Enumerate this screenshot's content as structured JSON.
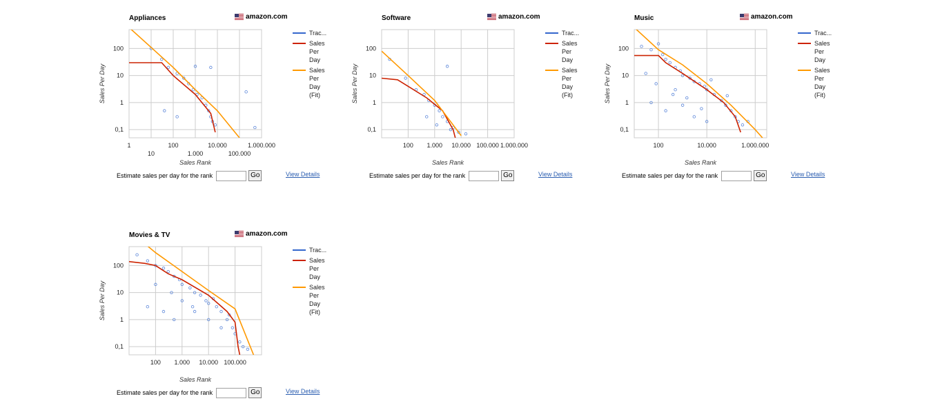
{
  "colors": {
    "tracked": "#3366cc",
    "per_day": "#cc2200",
    "fit": "#ff9900",
    "dots": "#5b86d9",
    "grid": "#cccccc"
  },
  "legend": [
    "Trac...",
    "Sales|Per|Day",
    "Sales|Per|Day|(Fit)"
  ],
  "estimate_label": "Estimate sales per day for the rank",
  "go_label": "Go",
  "view_details_label": "View Details",
  "store_label": "amazon.com",
  "store_icon": "us-flag-icon",
  "panels": [
    {
      "title": "Appliances"
    },
    {
      "title": "Software"
    },
    {
      "title": "Music"
    },
    {
      "title": "Movies & TV"
    }
  ],
  "chart_data": [
    {
      "type": "scatter",
      "title": "Appliances",
      "xlabel": "Sales Rank",
      "ylabel": "Sales Per Day",
      "x_scale": "log",
      "y_scale": "log",
      "xlim": [
        1,
        1000000
      ],
      "ylim": [
        0.05,
        500
      ],
      "x_ticks": [
        1,
        10,
        100,
        1000,
        10000,
        100000,
        1000000
      ],
      "x_tick_labels": [
        "1",
        "10",
        "100",
        "1.000",
        "10.000",
        "100.000",
        "1.000.000"
      ],
      "y_ticks": [
        0.1,
        1,
        10,
        100
      ],
      "y_tick_labels": [
        "0,1",
        "1",
        "10",
        "100"
      ],
      "grid": true,
      "legend_position": "right",
      "series": [
        {
          "name": "Trac...",
          "points": [
            [
              10,
              100
            ],
            [
              30,
              40
            ],
            [
              60,
              20
            ],
            [
              150,
              12
            ],
            [
              300,
              8
            ],
            [
              500,
              5
            ],
            [
              800,
              3
            ],
            [
              1200,
              2
            ],
            [
              2000,
              1.5
            ],
            [
              3000,
              0.8
            ],
            [
              4000,
              0.5
            ],
            [
              5000,
              0.3
            ],
            [
              6000,
              0.2
            ],
            [
              8000,
              0.15
            ],
            [
              1000,
              22
            ],
            [
              5000,
              20
            ],
            [
              200000,
              2.5
            ],
            [
              500000,
              0.12
            ],
            [
              40,
              0.5
            ],
            [
              150,
              0.3
            ]
          ]
        },
        {
          "name": "Sales Per Day",
          "line": [
            [
              1,
              30
            ],
            [
              30,
              30
            ],
            [
              100,
              10
            ],
            [
              1000,
              2
            ],
            [
              5000,
              0.4
            ],
            [
              8000,
              0.08
            ]
          ]
        },
        {
          "name": "Sales Per Day (Fit)",
          "line": [
            [
              1,
              600
            ],
            [
              10,
              110
            ],
            [
              100,
              20
            ],
            [
              1000,
              3
            ],
            [
              10000,
              0.5
            ],
            [
              100000,
              0.05
            ]
          ]
        }
      ]
    },
    {
      "type": "scatter",
      "title": "Software",
      "xlabel": "Sales Rank",
      "ylabel": "Sales Per Day",
      "x_scale": "log",
      "y_scale": "log",
      "xlim": [
        10,
        1000000
      ],
      "ylim": [
        0.05,
        500
      ],
      "x_ticks": [
        100,
        1000,
        10000,
        100000,
        1000000
      ],
      "x_tick_labels": [
        "100",
        "1.000",
        "10.000",
        "100.000",
        "1.000.000"
      ],
      "y_ticks": [
        0.1,
        1,
        10,
        100
      ],
      "y_tick_labels": [
        "0,1",
        "1",
        "10",
        "100"
      ],
      "grid": true,
      "legend_position": "right",
      "series": [
        {
          "name": "Trac...",
          "points": [
            [
              20,
              40
            ],
            [
              80,
              8
            ],
            [
              200,
              3
            ],
            [
              400,
              2
            ],
            [
              600,
              1.2
            ],
            [
              1000,
              0.8
            ],
            [
              1500,
              0.5
            ],
            [
              2000,
              0.3
            ],
            [
              3000,
              0.2
            ],
            [
              5000,
              0.12
            ],
            [
              3000,
              22
            ],
            [
              8000,
              0.08
            ],
            [
              15000,
              0.07
            ],
            [
              500,
              0.3
            ],
            [
              1200,
              0.15
            ],
            [
              4000,
              0.1
            ]
          ]
        },
        {
          "name": "Sales Per Day",
          "line": [
            [
              10,
              8
            ],
            [
              40,
              7
            ],
            [
              100,
              4
            ],
            [
              500,
              1.5
            ],
            [
              2000,
              0.5
            ],
            [
              5000,
              0.1
            ],
            [
              6000,
              0.05
            ]
          ]
        },
        {
          "name": "Sales Per Day (Fit)",
          "line": [
            [
              10,
              80
            ],
            [
              100,
              10
            ],
            [
              1000,
              1.2
            ],
            [
              10000,
              0.06
            ]
          ]
        }
      ]
    },
    {
      "type": "scatter",
      "title": "Music",
      "xlabel": "Sales Rank",
      "ylabel": "Sales Per Day",
      "x_scale": "log",
      "y_scale": "log",
      "xlim": [
        10,
        3000000
      ],
      "ylim": [
        0.05,
        500
      ],
      "x_ticks": [
        100,
        10000,
        1000000
      ],
      "x_tick_labels": [
        "100",
        "10.000",
        "1.000.000"
      ],
      "y_ticks": [
        0.1,
        1,
        10,
        100
      ],
      "y_tick_labels": [
        "0,1",
        "1",
        "10",
        "100"
      ],
      "grid": true,
      "legend_position": "right",
      "series": [
        {
          "name": "Trac...",
          "points": [
            [
              20,
              120
            ],
            [
              50,
              90
            ],
            [
              100,
              150
            ],
            [
              150,
              60
            ],
            [
              200,
              40
            ],
            [
              300,
              30
            ],
            [
              500,
              20
            ],
            [
              800,
              15
            ],
            [
              1000,
              10
            ],
            [
              2000,
              8
            ],
            [
              3000,
              6
            ],
            [
              5000,
              5
            ],
            [
              8000,
              4
            ],
            [
              10000,
              3
            ],
            [
              20000,
              2
            ],
            [
              40000,
              1.2
            ],
            [
              60000,
              0.8
            ],
            [
              100000,
              0.5
            ],
            [
              150000,
              0.3
            ],
            [
              200000,
              0.2
            ],
            [
              300000,
              0.15
            ],
            [
              50,
              1
            ],
            [
              200,
              0.5
            ],
            [
              500,
              3
            ],
            [
              1000,
              0.8
            ],
            [
              3000,
              0.3
            ],
            [
              10000,
              0.2
            ],
            [
              30,
              12
            ],
            [
              80,
              5
            ],
            [
              400,
              2
            ],
            [
              1500,
              1.5
            ],
            [
              6000,
              0.6
            ],
            [
              500000,
              0.2
            ],
            [
              15000,
              7
            ],
            [
              70000,
              1.8
            ]
          ]
        },
        {
          "name": "Sales Per Day",
          "line": [
            [
              10,
              55
            ],
            [
              100,
              55
            ],
            [
              200,
              30
            ],
            [
              1000,
              12
            ],
            [
              10000,
              3
            ],
            [
              50000,
              1
            ],
            [
              150000,
              0.3
            ],
            [
              250000,
              0.08
            ]
          ]
        },
        {
          "name": "Sales Per Day (Fit)",
          "line": [
            [
              10,
              600
            ],
            [
              100,
              90
            ],
            [
              1000,
              25
            ],
            [
              10000,
              5
            ],
            [
              100000,
              0.8
            ],
            [
              1000000,
              0.1
            ],
            [
              2000000,
              0.05
            ]
          ]
        }
      ]
    },
    {
      "type": "scatter",
      "title": "Movies & TV",
      "xlabel": "Sales Rank",
      "ylabel": "Sales Per Day",
      "x_scale": "log",
      "y_scale": "log",
      "xlim": [
        10,
        1000000
      ],
      "ylim": [
        0.05,
        500
      ],
      "x_ticks": [
        100,
        1000,
        10000,
        100000
      ],
      "x_tick_labels": [
        "100",
        "1.000",
        "10.000",
        "100.000"
      ],
      "y_ticks": [
        0.1,
        1,
        10,
        100
      ],
      "y_tick_labels": [
        "0,1",
        "1",
        "10",
        "100"
      ],
      "grid": true,
      "legend_position": "right",
      "series": [
        {
          "name": "Trac...",
          "points": [
            [
              20,
              250
            ],
            [
              50,
              150
            ],
            [
              100,
              100
            ],
            [
              200,
              80
            ],
            [
              300,
              60
            ],
            [
              500,
              40
            ],
            [
              800,
              30
            ],
            [
              1000,
              20
            ],
            [
              2000,
              15
            ],
            [
              3000,
              10
            ],
            [
              5000,
              8
            ],
            [
              8000,
              5
            ],
            [
              10000,
              4
            ],
            [
              20000,
              3
            ],
            [
              30000,
              2
            ],
            [
              50000,
              1
            ],
            [
              80000,
              0.5
            ],
            [
              100000,
              0.3
            ],
            [
              150000,
              0.15
            ],
            [
              200000,
              0.1
            ],
            [
              50,
              3
            ],
            [
              200,
              2
            ],
            [
              500,
              1
            ],
            [
              1000,
              5
            ],
            [
              3000,
              2
            ],
            [
              10000,
              1
            ],
            [
              30000,
              0.5
            ],
            [
              100,
              20
            ],
            [
              400,
              10
            ],
            [
              2500,
              3
            ],
            [
              15000,
              6
            ],
            [
              60000,
              1.5
            ],
            [
              300000,
              0.08
            ]
          ]
        },
        {
          "name": "Sales Per Day",
          "line": [
            [
              10,
              140
            ],
            [
              40,
              120
            ],
            [
              100,
              100
            ],
            [
              300,
              50
            ],
            [
              1000,
              30
            ],
            [
              10000,
              8
            ],
            [
              50000,
              2
            ],
            [
              100000,
              0.8
            ],
            [
              130000,
              0.1
            ],
            [
              150000,
              0.05
            ]
          ]
        },
        {
          "name": "Sales Per Day (Fit)",
          "line": [
            [
              30,
              800
            ],
            [
              100,
              300
            ],
            [
              1000,
              60
            ],
            [
              10000,
              12
            ],
            [
              100000,
              2.5
            ],
            [
              500000,
              0.05
            ]
          ]
        }
      ]
    }
  ]
}
